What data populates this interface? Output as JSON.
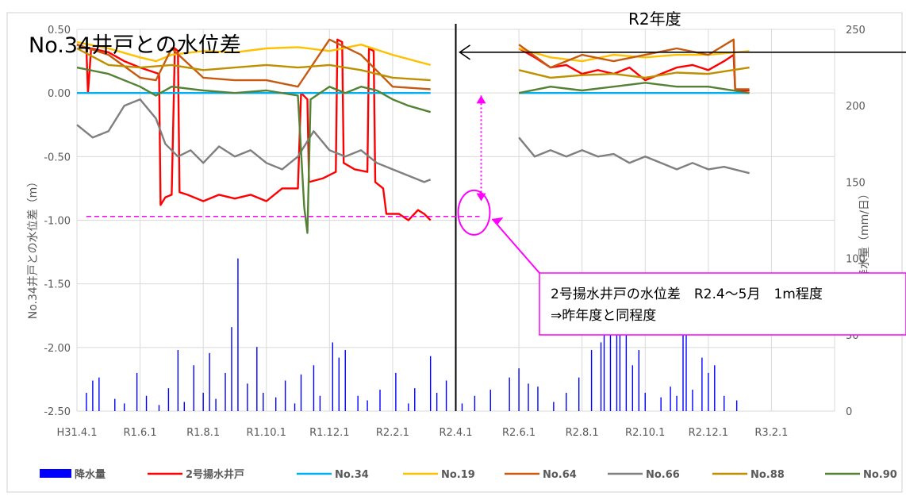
{
  "chart_data": {
    "type": "line",
    "title": "No.34井戸との水位差",
    "ylabel": "No.34井戸との水位差（m）",
    "y2label": "降水量（mm/日）",
    "ylim": [
      -2.5,
      0.5
    ],
    "y2lim": [
      0,
      250
    ],
    "yticks": [
      "0.50",
      "0.00",
      "-0.50",
      "-1.00",
      "-1.50",
      "-2.00",
      "-2.50"
    ],
    "y2ticks": [
      "250",
      "200",
      "150",
      "100",
      "50",
      "0"
    ],
    "xticks": [
      "H31.4.1",
      "R1.6.1",
      "R1.8.1",
      "R1.10.1",
      "R1.12.1",
      "R2.2.1",
      "R2.4.1",
      "R2.6.1",
      "R2.8.1",
      "R2.10.1",
      "R2.12.1",
      "R3.2.1"
    ],
    "x_range_months": [
      0,
      24
    ],
    "grid": true,
    "legend_position": "bottom",
    "series": [
      {
        "name": "降水量",
        "type": "bar",
        "axis": "right",
        "color": "#0000ff",
        "points": [
          [
            0.3,
            12
          ],
          [
            0.5,
            20
          ],
          [
            0.7,
            22
          ],
          [
            1.2,
            8
          ],
          [
            1.5,
            5
          ],
          [
            1.9,
            25
          ],
          [
            2.2,
            10
          ],
          [
            2.6,
            4
          ],
          [
            2.9,
            15
          ],
          [
            3.2,
            40
          ],
          [
            3.4,
            6
          ],
          [
            3.7,
            30
          ],
          [
            4.0,
            12
          ],
          [
            4.2,
            38
          ],
          [
            4.4,
            8
          ],
          [
            4.7,
            25
          ],
          [
            4.9,
            55
          ],
          [
            5.1,
            100
          ],
          [
            5.4,
            18
          ],
          [
            5.7,
            42
          ],
          [
            5.9,
            12
          ],
          [
            6.3,
            9
          ],
          [
            6.6,
            20
          ],
          [
            6.9,
            5
          ],
          [
            7.1,
            24
          ],
          [
            7.5,
            30
          ],
          [
            7.7,
            10
          ],
          [
            8.1,
            45
          ],
          [
            8.3,
            35
          ],
          [
            8.5,
            40
          ],
          [
            8.9,
            10
          ],
          [
            9.2,
            7
          ],
          [
            9.6,
            14
          ],
          [
            10.1,
            25
          ],
          [
            10.5,
            5
          ],
          [
            10.7,
            15
          ],
          [
            11.2,
            36
          ],
          [
            11.4,
            12
          ],
          [
            11.7,
            20
          ],
          [
            12.2,
            5
          ],
          [
            12.6,
            10
          ],
          [
            13.1,
            14
          ],
          [
            13.7,
            22
          ],
          [
            14.0,
            28
          ],
          [
            14.3,
            18
          ],
          [
            14.6,
            16
          ],
          [
            15.1,
            6
          ],
          [
            15.5,
            12
          ],
          [
            15.9,
            22
          ],
          [
            16.3,
            40
          ],
          [
            16.6,
            45
          ],
          [
            16.7,
            60
          ],
          [
            16.9,
            55
          ],
          [
            17.1,
            80
          ],
          [
            17.2,
            50
          ],
          [
            17.4,
            60
          ],
          [
            17.6,
            30
          ],
          [
            17.8,
            40
          ],
          [
            18.0,
            12
          ],
          [
            18.5,
            9
          ],
          [
            18.8,
            16
          ],
          [
            19.0,
            10
          ],
          [
            19.2,
            70
          ],
          [
            19.3,
            50
          ],
          [
            19.5,
            14
          ],
          [
            19.8,
            35
          ],
          [
            20.0,
            25
          ],
          [
            20.2,
            30
          ],
          [
            20.5,
            10
          ],
          [
            20.9,
            7
          ]
        ]
      },
      {
        "name": "2号揚水井戸",
        "color": "#ff0000",
        "axis": "left",
        "points": [
          [
            0,
            0.38
          ],
          [
            0.3,
            0.35
          ],
          [
            0.35,
            0.0
          ],
          [
            0.45,
            0.35
          ],
          [
            1.0,
            0.32
          ],
          [
            1.5,
            0.25
          ],
          [
            2.0,
            0.2
          ],
          [
            2.6,
            0.15
          ],
          [
            2.65,
            -0.88
          ],
          [
            2.8,
            -0.82
          ],
          [
            3.0,
            -0.8
          ],
          [
            3.1,
            0.35
          ],
          [
            3.2,
            0.33
          ],
          [
            3.25,
            -0.78
          ],
          [
            3.5,
            -0.8
          ],
          [
            4.0,
            -0.85
          ],
          [
            4.5,
            -0.8
          ],
          [
            5.0,
            -0.83
          ],
          [
            5.5,
            -0.8
          ],
          [
            6.0,
            -0.85
          ],
          [
            6.5,
            -0.75
          ],
          [
            7.0,
            -0.75
          ],
          [
            7.1,
            0.0
          ],
          [
            7.3,
            -0.05
          ],
          [
            7.35,
            -0.7
          ],
          [
            7.8,
            -0.67
          ],
          [
            8.2,
            -0.62
          ],
          [
            8.25,
            0.42
          ],
          [
            8.4,
            0.4
          ],
          [
            8.45,
            -0.55
          ],
          [
            8.8,
            -0.6
          ],
          [
            9.2,
            -0.62
          ],
          [
            9.25,
            0.35
          ],
          [
            9.4,
            0.33
          ],
          [
            9.45,
            -0.7
          ],
          [
            9.7,
            -0.75
          ],
          [
            9.8,
            -0.95
          ],
          [
            10.2,
            -0.95
          ],
          [
            10.5,
            -1.0
          ],
          [
            10.8,
            -0.92
          ],
          [
            11.0,
            -0.95
          ],
          [
            11.2,
            -1.0
          ]
        ]
      },
      {
        "name": "2号揚水井戸",
        "color": "#ff0000",
        "axis": "left",
        "points": [
          [
            14.0,
            0.35
          ],
          [
            14.5,
            0.28
          ],
          [
            15.0,
            0.2
          ],
          [
            15.5,
            0.22
          ],
          [
            16.0,
            0.15
          ],
          [
            16.5,
            0.18
          ],
          [
            17.0,
            0.15
          ],
          [
            17.5,
            0.2
          ],
          [
            18.0,
            0.1
          ],
          [
            18.5,
            0.15
          ],
          [
            19.0,
            0.2
          ],
          [
            19.5,
            0.22
          ],
          [
            20.0,
            0.18
          ],
          [
            20.5,
            0.25
          ],
          [
            20.8,
            0.3
          ],
          [
            20.85,
            0.02
          ],
          [
            21.3,
            0.02
          ]
        ]
      },
      {
        "name": "No.34",
        "color": "#00b0f0",
        "axis": "left",
        "points": [
          [
            0,
            0.0
          ],
          [
            11.2,
            0.0
          ]
        ]
      },
      {
        "name": "No.34",
        "color": "#00b0f0",
        "axis": "left",
        "points": [
          [
            14.0,
            0.0
          ],
          [
            21.3,
            0.0
          ]
        ]
      },
      {
        "name": "No.19",
        "color": "#ffc000",
        "axis": "left",
        "points": [
          [
            0,
            0.4
          ],
          [
            1.0,
            0.35
          ],
          [
            2.0,
            0.28
          ],
          [
            2.5,
            0.25
          ],
          [
            3.0,
            0.3
          ],
          [
            4.0,
            0.33
          ],
          [
            5.0,
            0.32
          ],
          [
            6.0,
            0.35
          ],
          [
            7.0,
            0.36
          ],
          [
            8.0,
            0.33
          ],
          [
            9.0,
            0.38
          ],
          [
            10.0,
            0.3
          ],
          [
            11.2,
            0.22
          ]
        ]
      },
      {
        "name": "No.19",
        "color": "#ffc000",
        "axis": "left",
        "points": [
          [
            14.0,
            0.35
          ],
          [
            15.0,
            0.28
          ],
          [
            16.0,
            0.25
          ],
          [
            17.0,
            0.3
          ],
          [
            18.0,
            0.28
          ],
          [
            19.0,
            0.3
          ],
          [
            20.0,
            0.3
          ],
          [
            21.3,
            0.33
          ]
        ]
      },
      {
        "name": "No.64",
        "color": "#c55a11",
        "axis": "left",
        "points": [
          [
            0,
            0.38
          ],
          [
            1.0,
            0.3
          ],
          [
            2.0,
            0.12
          ],
          [
            2.5,
            0.1
          ],
          [
            3.0,
            0.35
          ],
          [
            4.0,
            0.12
          ],
          [
            5.0,
            0.1
          ],
          [
            6.0,
            0.1
          ],
          [
            7.0,
            0.05
          ],
          [
            8.0,
            0.42
          ],
          [
            9.0,
            0.3
          ],
          [
            10.0,
            0.05
          ],
          [
            11.2,
            0.03
          ]
        ]
      },
      {
        "name": "No.64",
        "color": "#c55a11",
        "axis": "left",
        "points": [
          [
            14.0,
            0.38
          ],
          [
            15.0,
            0.2
          ],
          [
            16.0,
            0.3
          ],
          [
            17.0,
            0.25
          ],
          [
            18.0,
            0.3
          ],
          [
            19.0,
            0.35
          ],
          [
            20.0,
            0.3
          ],
          [
            20.8,
            0.42
          ],
          [
            20.85,
            0.03
          ],
          [
            21.3,
            0.03
          ]
        ]
      },
      {
        "name": "No.66",
        "color": "#7f7f7f",
        "axis": "left",
        "points": [
          [
            0,
            -0.25
          ],
          [
            0.5,
            -0.35
          ],
          [
            1.0,
            -0.3
          ],
          [
            1.5,
            -0.1
          ],
          [
            2.0,
            -0.05
          ],
          [
            2.5,
            -0.2
          ],
          [
            2.8,
            -0.4
          ],
          [
            3.2,
            -0.5
          ],
          [
            3.6,
            -0.45
          ],
          [
            4.0,
            -0.55
          ],
          [
            4.5,
            -0.42
          ],
          [
            5.0,
            -0.5
          ],
          [
            5.5,
            -0.45
          ],
          [
            6.0,
            -0.55
          ],
          [
            6.5,
            -0.6
          ],
          [
            7.0,
            -0.5
          ],
          [
            7.5,
            -0.3
          ],
          [
            8.0,
            -0.45
          ],
          [
            8.5,
            -0.5
          ],
          [
            9.0,
            -0.45
          ],
          [
            9.5,
            -0.55
          ],
          [
            10.0,
            -0.6
          ],
          [
            10.5,
            -0.65
          ],
          [
            11.0,
            -0.7
          ],
          [
            11.2,
            -0.68
          ]
        ]
      },
      {
        "name": "No.66",
        "color": "#7f7f7f",
        "axis": "left",
        "points": [
          [
            14.0,
            -0.35
          ],
          [
            14.5,
            -0.5
          ],
          [
            15.0,
            -0.45
          ],
          [
            15.5,
            -0.5
          ],
          [
            16.0,
            -0.45
          ],
          [
            16.5,
            -0.5
          ],
          [
            17.0,
            -0.48
          ],
          [
            17.5,
            -0.55
          ],
          [
            18.0,
            -0.5
          ],
          [
            18.5,
            -0.55
          ],
          [
            19.0,
            -0.6
          ],
          [
            19.5,
            -0.55
          ],
          [
            20.0,
            -0.6
          ],
          [
            20.5,
            -0.58
          ],
          [
            21.3,
            -0.63
          ]
        ]
      },
      {
        "name": "No.88",
        "color": "#bf8f00",
        "axis": "left",
        "points": [
          [
            0,
            0.35
          ],
          [
            1.0,
            0.22
          ],
          [
            2.0,
            0.2
          ],
          [
            3.0,
            0.22
          ],
          [
            4.0,
            0.18
          ],
          [
            5.0,
            0.2
          ],
          [
            6.0,
            0.22
          ],
          [
            7.0,
            0.2
          ],
          [
            8.0,
            0.22
          ],
          [
            9.0,
            0.18
          ],
          [
            10.0,
            0.12
          ],
          [
            11.2,
            0.1
          ]
        ]
      },
      {
        "name": "No.88",
        "color": "#bf8f00",
        "axis": "left",
        "points": [
          [
            14.0,
            0.18
          ],
          [
            15.0,
            0.12
          ],
          [
            16.0,
            0.14
          ],
          [
            17.0,
            0.15
          ],
          [
            18.0,
            0.12
          ],
          [
            19.0,
            0.16
          ],
          [
            20.0,
            0.15
          ],
          [
            21.3,
            0.2
          ]
        ]
      },
      {
        "name": "No.90",
        "color": "#548235",
        "axis": "left",
        "points": [
          [
            0,
            0.2
          ],
          [
            1.0,
            0.15
          ],
          [
            2.0,
            0.05
          ],
          [
            2.5,
            -0.02
          ],
          [
            3.0,
            0.05
          ],
          [
            4.0,
            0.02
          ],
          [
            5.0,
            0.0
          ],
          [
            6.0,
            0.02
          ],
          [
            7.0,
            -0.02
          ],
          [
            7.2,
            -0.9
          ],
          [
            7.3,
            -1.1
          ],
          [
            7.4,
            -0.05
          ],
          [
            8.0,
            0.05
          ],
          [
            8.5,
            0.0
          ],
          [
            9.0,
            0.05
          ],
          [
            9.5,
            0.02
          ],
          [
            10.0,
            -0.05
          ],
          [
            10.5,
            -0.1
          ],
          [
            11.2,
            -0.15
          ]
        ]
      },
      {
        "name": "No.90",
        "color": "#548235",
        "axis": "left",
        "points": [
          [
            14.0,
            0.0
          ],
          [
            15.0,
            0.05
          ],
          [
            16.0,
            0.02
          ],
          [
            17.0,
            0.05
          ],
          [
            18.0,
            0.08
          ],
          [
            19.0,
            0.05
          ],
          [
            20.0,
            0.05
          ],
          [
            21.3,
            0.0
          ]
        ]
      }
    ],
    "legend": [
      {
        "name": "降水量",
        "color": "#0000ff",
        "kind": "bar"
      },
      {
        "name": "2号揚水井戸",
        "color": "#ff0000",
        "kind": "line"
      },
      {
        "name": "No.34",
        "color": "#00b0f0",
        "kind": "line"
      },
      {
        "name": "No.19",
        "color": "#ffc000",
        "kind": "line"
      },
      {
        "name": "No.64",
        "color": "#c55a11",
        "kind": "line"
      },
      {
        "name": "No.66",
        "color": "#7f7f7f",
        "kind": "line"
      },
      {
        "name": "No.88",
        "color": "#bf8f00",
        "kind": "line"
      },
      {
        "name": "No.90",
        "color": "#548235",
        "kind": "line"
      }
    ],
    "annotations": {
      "period_label": "R2年度",
      "period_start_month": 12,
      "reference_line_value": -0.97,
      "callout_lines": [
        "2号揚水井戸の水位差　R2.4～5月　1m程度",
        "⇒昨年度と同程度"
      ],
      "accent_color": "#ff00ff"
    }
  }
}
